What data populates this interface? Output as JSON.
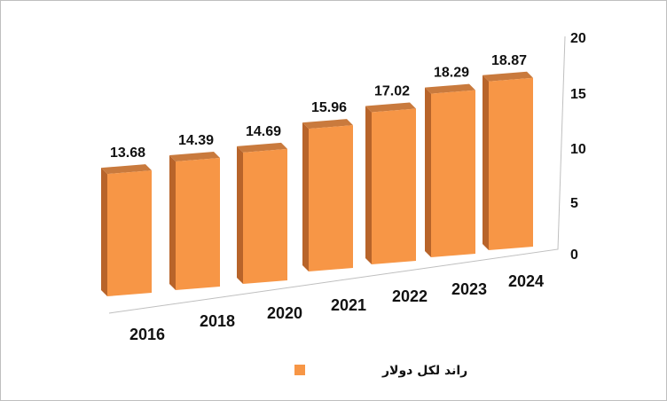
{
  "chart_data": {
    "type": "bar",
    "categories": [
      "2016",
      "2018",
      "2020",
      "2021",
      "2022",
      "2023",
      "2024"
    ],
    "series": [
      {
        "name": "راند لكل دولار",
        "values": [
          13.68,
          14.39,
          14.69,
          15.96,
          17.02,
          18.29,
          18.87
        ]
      }
    ],
    "data_labels": [
      "13.68",
      "14.39",
      "14.69",
      "15.96",
      "17.02",
      "18.29",
      "18.87"
    ],
    "ylim": [
      0,
      20
    ],
    "yticks": [
      "0",
      "5",
      "10",
      "15",
      "20"
    ],
    "legend": "bottom",
    "colors": {
      "front": "#f79646",
      "side": "#b8642a",
      "top": "#c97a3d"
    }
  }
}
